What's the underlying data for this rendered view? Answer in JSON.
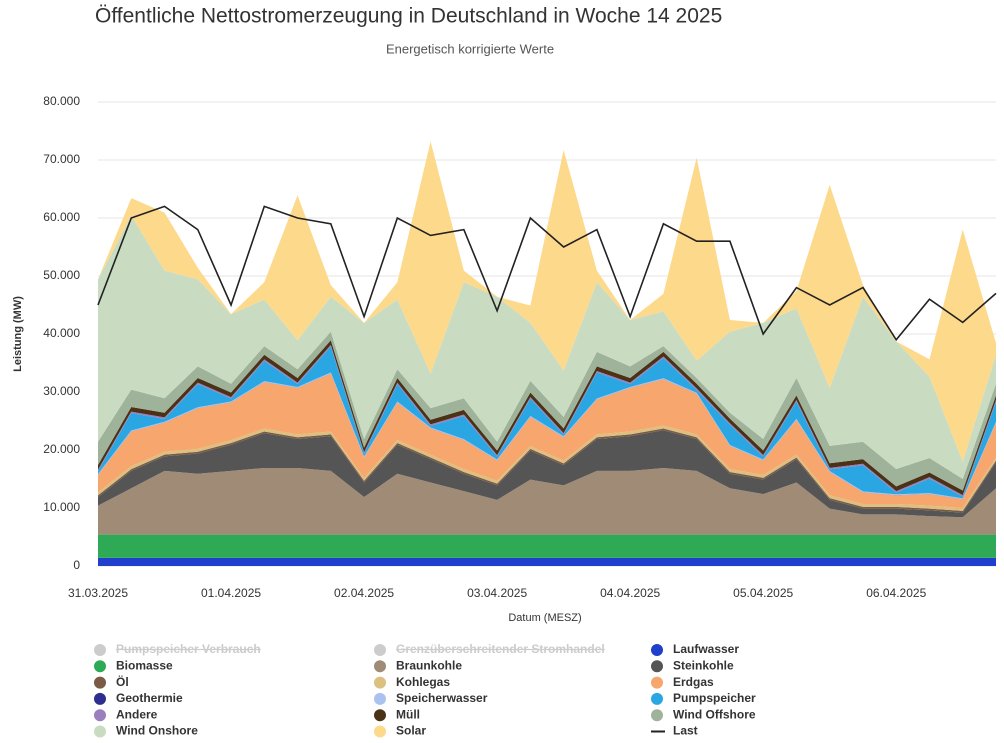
{
  "chart_data": {
    "type": "stacked_area",
    "title": "Öffentliche Nettostromerzeugung in Deutschland in Woche 14 2025",
    "subtitle": "Energetisch korrigierte Werte",
    "y_label": "Leistung (MW)",
    "x_label": "Datum (MESZ)",
    "categories": [
      "31.03.2025",
      null,
      null,
      null,
      "01.04.2025",
      null,
      null,
      null,
      "02.04.2025",
      null,
      null,
      null,
      "03.04.2025",
      null,
      null,
      null,
      "04.04.2025",
      null,
      null,
      null,
      "05.04.2025",
      null,
      null,
      null,
      "06.04.2025",
      null,
      null,
      null
    ],
    "ylim": [
      0,
      80000
    ],
    "yticks": [
      0,
      {
        "value": 10000,
        "label": "10.000"
      },
      {
        "value": 20000,
        "label": "20.000"
      },
      {
        "value": 30000,
        "label": "30.000"
      },
      {
        "value": 40000,
        "label": "40.000"
      },
      {
        "value": 50000,
        "label": "50.000"
      },
      {
        "value": 60000,
        "label": "60.000"
      },
      {
        "value": 70000,
        "label": "70.000"
      },
      {
        "value": 80000,
        "label": "80.000"
      }
    ],
    "grid": true,
    "series": [
      {
        "name": "Pumpspeicher Verbrauch",
        "color": "#cccccc",
        "visible": false
      },
      {
        "name": "Grenzüberschreitender Stromhandel",
        "color": "#cccccc",
        "visible": false
      },
      {
        "name": "Laufwasser",
        "color": "#1f3fcc",
        "values": [
          1400,
          1400,
          1400,
          1400,
          1400,
          1400,
          1400,
          1400,
          1400,
          1400,
          1400,
          1400,
          1400,
          1400,
          1400,
          1400,
          1400,
          1400,
          1400,
          1400,
          1400,
          1400,
          1400,
          1400,
          1400,
          1400,
          1400,
          1400
        ]
      },
      {
        "name": "Biomasse",
        "color": "#2eaa57",
        "values": [
          4000,
          4000,
          4000,
          4000,
          4000,
          4000,
          4000,
          4000,
          4000,
          4000,
          4000,
          4000,
          4000,
          4000,
          4000,
          4000,
          4000,
          4000,
          4000,
          4000,
          4000,
          4000,
          4000,
          4000,
          4000,
          4000,
          4000,
          4000
        ]
      },
      {
        "name": "Braunkohle",
        "color": "#a08b77",
        "values": [
          5000,
          8000,
          11000,
          10500,
          11000,
          11500,
          11500,
          11000,
          6500,
          10500,
          9000,
          7500,
          6000,
          9500,
          8500,
          11000,
          11000,
          11500,
          11000,
          8000,
          7000,
          9000,
          4500,
          3500,
          3500,
          3200,
          3000,
          8000
        ]
      },
      {
        "name": "Steinkohle",
        "color": "#555555",
        "values": [
          1500,
          3000,
          2500,
          3500,
          4500,
          6000,
          5000,
          6000,
          2500,
          5000,
          4000,
          3000,
          2500,
          5000,
          3500,
          5500,
          6000,
          6500,
          5500,
          2500,
          2500,
          4000,
          1500,
          1000,
          1000,
          1000,
          800,
          4500
        ]
      },
      {
        "name": "Öl",
        "color": "#7b5b46",
        "values": [
          300,
          300,
          300,
          300,
          300,
          300,
          300,
          300,
          300,
          300,
          300,
          300,
          300,
          300,
          300,
          300,
          300,
          300,
          300,
          300,
          300,
          300,
          300,
          300,
          300,
          300,
          300,
          300
        ]
      },
      {
        "name": "Kohlegas",
        "color": "#dcc07f",
        "values": [
          500,
          500,
          500,
          500,
          500,
          500,
          500,
          500,
          500,
          500,
          500,
          500,
          500,
          500,
          500,
          500,
          500,
          500,
          500,
          500,
          500,
          500,
          500,
          500,
          500,
          500,
          500,
          500
        ]
      },
      {
        "name": "Erdgas",
        "color": "#f7a66e",
        "values": [
          3000,
          6000,
          5000,
          7000,
          6500,
          8000,
          8000,
          10000,
          3500,
          6500,
          4500,
          5000,
          3500,
          5000,
          4000,
          6000,
          7500,
          8000,
          7000,
          4000,
          2500,
          6000,
          4000,
          2000,
          1500,
          2000,
          1500,
          6000
        ]
      },
      {
        "name": "Geothermie",
        "color": "#2e2e8f",
        "values": [
          20,
          20,
          20,
          20,
          20,
          20,
          20,
          20,
          20,
          20,
          20,
          20,
          20,
          20,
          20,
          20,
          20,
          20,
          20,
          20,
          20,
          20,
          20,
          20,
          20,
          20,
          20,
          20
        ]
      },
      {
        "name": "Speicherwasser",
        "color": "#a9c2f0",
        "values": [
          150,
          150,
          150,
          150,
          150,
          150,
          150,
          150,
          150,
          150,
          150,
          150,
          150,
          150,
          150,
          150,
          150,
          150,
          150,
          150,
          150,
          150,
          150,
          150,
          150,
          150,
          150,
          150
        ]
      },
      {
        "name": "Pumpspeicher",
        "color": "#2aa6e2",
        "values": [
          500,
          3000,
          500,
          4000,
          500,
          3500,
          500,
          4500,
          500,
          3000,
          300,
          4000,
          500,
          3000,
          300,
          4500,
          500,
          3500,
          500,
          3500,
          500,
          3000,
          300,
          4500,
          300,
          2500,
          300,
          3500
        ]
      },
      {
        "name": "Andere",
        "color": "#9b7ebd",
        "values": [
          250,
          250,
          250,
          250,
          250,
          250,
          250,
          250,
          250,
          250,
          250,
          250,
          250,
          250,
          250,
          250,
          250,
          250,
          250,
          250,
          250,
          250,
          250,
          250,
          250,
          250,
          250,
          250
        ]
      },
      {
        "name": "Müll",
        "color": "#4b3216",
        "values": [
          800,
          800,
          800,
          800,
          800,
          800,
          800,
          800,
          800,
          800,
          800,
          800,
          800,
          800,
          800,
          800,
          800,
          800,
          800,
          800,
          800,
          800,
          800,
          800,
          800,
          800,
          800,
          800
        ]
      },
      {
        "name": "Wind Offshore",
        "color": "#9fb39a",
        "values": [
          4000,
          3000,
          2500,
          2000,
          1500,
          1500,
          1500,
          1500,
          1500,
          1500,
          2000,
          2000,
          1500,
          2000,
          2000,
          2500,
          2000,
          1000,
          1000,
          1000,
          2000,
          3000,
          3000,
          3000,
          3000,
          2500,
          2000,
          2000
        ]
      },
      {
        "name": "Wind Onshore",
        "color": "#c9dcc2",
        "values": [
          28000,
          30000,
          22000,
          15000,
          12000,
          8000,
          5000,
          6000,
          20000,
          12000,
          6000,
          20000,
          25000,
          10000,
          8000,
          12000,
          8000,
          6000,
          3000,
          14000,
          20000,
          12000,
          10000,
          25000,
          22000,
          14000,
          3000,
          5000
        ]
      },
      {
        "name": "Solar",
        "color": "#fdd98b",
        "values": [
          0,
          3000,
          10000,
          2000,
          0,
          3000,
          25000,
          2000,
          0,
          3000,
          40000,
          2000,
          0,
          3000,
          38000,
          2000,
          0,
          3000,
          35000,
          2000,
          0,
          3000,
          35000,
          2000,
          0,
          3000,
          40000,
          2000
        ]
      },
      {
        "name": "Last",
        "color": "#222222",
        "type": "line",
        "values": [
          45000,
          60000,
          62000,
          58000,
          45000,
          62000,
          60000,
          59000,
          43000,
          60000,
          57000,
          58000,
          44000,
          60000,
          55000,
          58000,
          43000,
          59000,
          56000,
          56000,
          40000,
          48000,
          45000,
          48000,
          39000,
          46000,
          42000,
          47000
        ]
      }
    ]
  }
}
